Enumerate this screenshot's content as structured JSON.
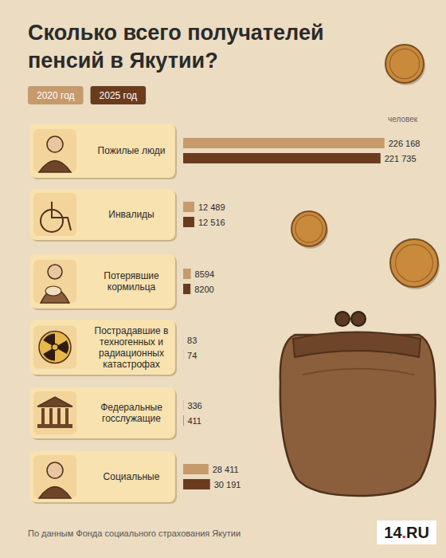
{
  "chart_data": {
    "type": "bar",
    "orientation": "horizontal",
    "title": "Сколько всего получателей пенсий в Якутии?",
    "xlabel": "человек",
    "categories": [
      "Пожилые люди",
      "Инвалиды",
      "Потерявшие кормильца",
      "Пострадавшие в техногенных и радиационных катастрофах",
      "Федеральные госслужащие",
      "Социальные"
    ],
    "series": [
      {
        "name": "2020 год",
        "color": "#c79a6b",
        "values": [
          226168,
          12489,
          8594,
          83,
          336,
          28411
        ],
        "value_labels": [
          "226 168",
          "12 489",
          "8594",
          "83",
          "336",
          "28 411"
        ]
      },
      {
        "name": "2025 год",
        "color": "#6b3b1e",
        "values": [
          221735,
          12516,
          8200,
          74,
          411,
          30191
        ],
        "value_labels": [
          "221 735",
          "12 516",
          "8200",
          "74",
          "411",
          "30 191"
        ]
      }
    ],
    "xlim": [
      0,
      230000
    ],
    "data_labels": true,
    "tick_labels": false,
    "legend": "top-left",
    "source": "По данным Фонда социального страхования Якутии",
    "logo": "14.RU"
  }
}
